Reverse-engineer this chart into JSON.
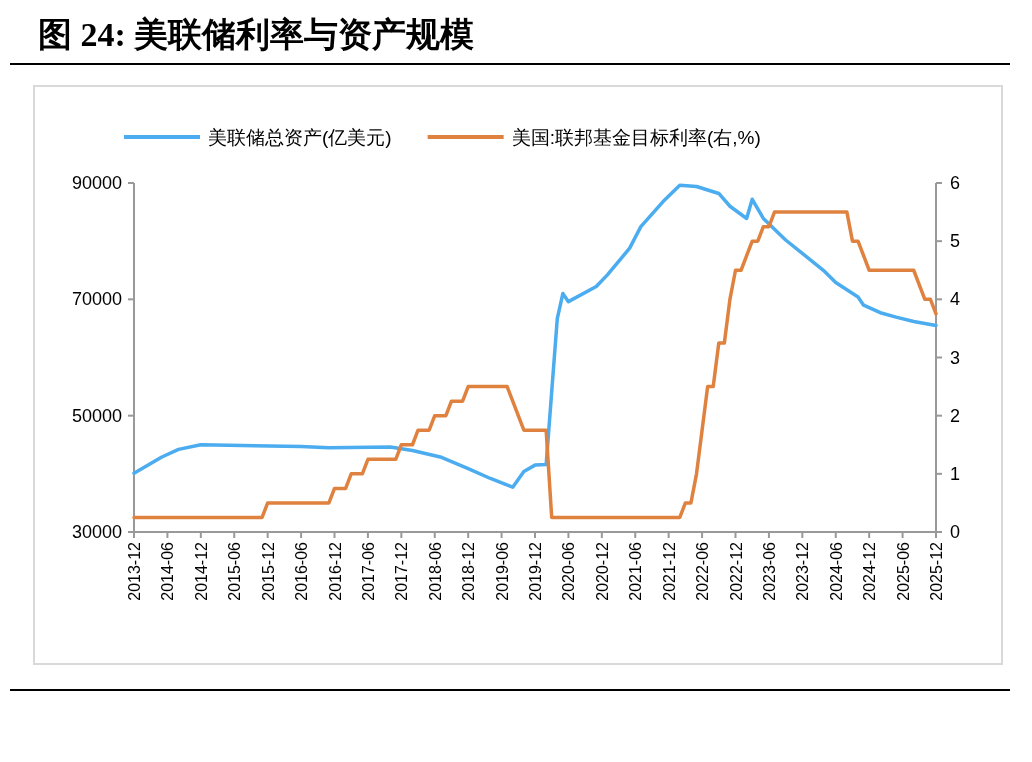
{
  "chart_data": {
    "type": "line",
    "title": "图 24:  美联储利率与资产规模",
    "xlim": [
      "2013-12",
      "2025-12"
    ],
    "xticks": [
      "2013-12",
      "2014-06",
      "2014-12",
      "2015-06",
      "2015-12",
      "2016-06",
      "2016-12",
      "2017-06",
      "2017-12",
      "2018-06",
      "2018-12",
      "2019-06",
      "2019-12",
      "2020-06",
      "2020-12",
      "2021-06",
      "2021-12",
      "2022-06",
      "2022-12",
      "2023-06",
      "2023-12",
      "2024-06",
      "2024-12",
      "2025-06",
      "2025-12"
    ],
    "ylim": [
      30000,
      90000
    ],
    "yticks": [
      30000,
      50000,
      70000,
      90000
    ],
    "y2lim": [
      0,
      6
    ],
    "y2ticks": [
      0,
      1,
      2,
      3,
      4,
      5,
      6
    ],
    "legend": "top",
    "grid": false,
    "series": [
      {
        "name": "美联储总资产(亿美元)",
        "color": "#4bacef",
        "x": [
          "2013-12",
          "2014-05",
          "2014-08",
          "2014-12",
          "2016-06",
          "2016-11",
          "2017-10",
          "2018-02",
          "2018-07",
          "2018-12",
          "2019-04",
          "2019-08",
          "2019-10",
          "2019-12",
          "2020-02",
          "2020-04",
          "2020-05",
          "2020-06",
          "2020-11",
          "2021-01",
          "2021-05",
          "2021-07",
          "2021-11",
          "2022-02",
          "2022-05",
          "2022-09",
          "2022-11",
          "2023-02",
          "2023-03",
          "2023-05",
          "2023-09",
          "2023-12",
          "2024-04",
          "2024-06",
          "2024-10",
          "2024-11",
          "2025-02",
          "2025-05",
          "2025-08",
          "2025-12"
        ],
        "values": [
          40100,
          42900,
          44200,
          45000,
          44700,
          44500,
          44600,
          44000,
          42900,
          40900,
          39200,
          37700,
          40400,
          41500,
          41600,
          66700,
          71000,
          69600,
          72200,
          74200,
          78800,
          82500,
          86800,
          89600,
          89400,
          88200,
          86000,
          83900,
          87200,
          83900,
          80200,
          77900,
          74800,
          72900,
          70400,
          69000,
          67700,
          66900,
          66200,
          65500
        ]
      },
      {
        "name": "美国:联邦基金目标利率(右,%)",
        "color": "#e0823f",
        "axis": "y2",
        "x": [
          "2013-12",
          "2015-11",
          "2015-12",
          "2016-11",
          "2016-12",
          "2017-02",
          "2017-03",
          "2017-05",
          "2017-06",
          "2017-11",
          "2017-12",
          "2018-02",
          "2018-03",
          "2018-05",
          "2018-06",
          "2018-08",
          "2018-09",
          "2018-11",
          "2018-12",
          "2019-07",
          "2019-10",
          "2020-02",
          "2020-03",
          "2022-02",
          "2022-03",
          "2022-04",
          "2022-05",
          "2022-06",
          "2022-07",
          "2022-08",
          "2022-09",
          "2022-10",
          "2022-11",
          "2022-12",
          "2023-01",
          "2023-02",
          "2023-03",
          "2023-04",
          "2023-05",
          "2023-06",
          "2023-07",
          "2024-08",
          "2024-09",
          "2024-10",
          "2024-11",
          "2024-12",
          "2025-08",
          "2025-09",
          "2025-10",
          "2025-11",
          "2025-12"
        ],
        "values": [
          0.25,
          0.25,
          0.5,
          0.5,
          0.75,
          0.75,
          1.0,
          1.0,
          1.25,
          1.25,
          1.5,
          1.5,
          1.75,
          1.75,
          2.0,
          2.0,
          2.25,
          2.25,
          2.5,
          2.5,
          1.75,
          1.75,
          0.25,
          0.25,
          0.5,
          0.5,
          1.0,
          1.75,
          2.5,
          2.5,
          3.25,
          3.25,
          4.0,
          4.5,
          4.5,
          4.75,
          5.0,
          5.0,
          5.25,
          5.25,
          5.5,
          5.5,
          5.0,
          5.0,
          4.75,
          4.5,
          4.5,
          4.25,
          4.0,
          4.0,
          3.75
        ]
      }
    ]
  }
}
